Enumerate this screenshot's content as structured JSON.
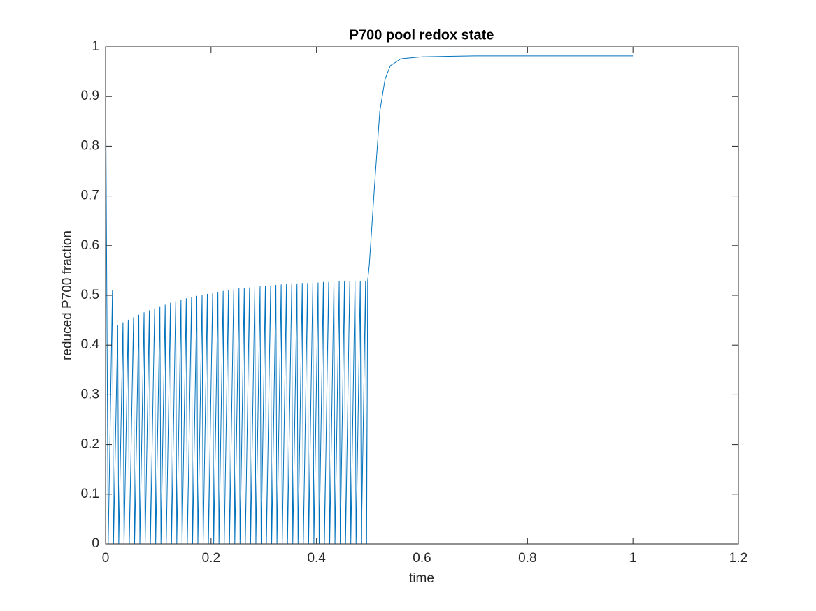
{
  "chart_data": {
    "type": "line",
    "title": "P700 pool redox state",
    "xlabel": "time",
    "ylabel": "reduced P700 fraction",
    "color": "#0072BD",
    "xlim": [
      0,
      1.2
    ],
    "xticks": [
      0,
      0.2,
      0.4,
      0.6,
      0.8,
      1,
      1.2
    ],
    "ylim": [
      0,
      1
    ],
    "yticks": [
      0,
      0.1,
      0.2,
      0.3,
      0.4,
      0.5,
      0.6,
      0.7,
      0.8,
      0.9,
      1
    ],
    "x": [
      0,
      0.005,
      0.013,
      0.015,
      0.023,
      0.025,
      0.033,
      0.035,
      0.043,
      0.045,
      0.053,
      0.055,
      0.063,
      0.065,
      0.073,
      0.075,
      0.083,
      0.085,
      0.093,
      0.095,
      0.103,
      0.105,
      0.113,
      0.115,
      0.123,
      0.125,
      0.133,
      0.135,
      0.143,
      0.145,
      0.153,
      0.155,
      0.163,
      0.165,
      0.173,
      0.175,
      0.183,
      0.185,
      0.193,
      0.195,
      0.203,
      0.205,
      0.213,
      0.215,
      0.223,
      0.225,
      0.233,
      0.235,
      0.243,
      0.245,
      0.253,
      0.255,
      0.263,
      0.265,
      0.273,
      0.275,
      0.283,
      0.285,
      0.293,
      0.295,
      0.303,
      0.305,
      0.313,
      0.315,
      0.323,
      0.325,
      0.333,
      0.335,
      0.343,
      0.345,
      0.353,
      0.355,
      0.363,
      0.365,
      0.373,
      0.375,
      0.383,
      0.385,
      0.393,
      0.395,
      0.403,
      0.405,
      0.413,
      0.415,
      0.423,
      0.425,
      0.433,
      0.435,
      0.443,
      0.445,
      0.453,
      0.455,
      0.463,
      0.465,
      0.473,
      0.475,
      0.483,
      0.485,
      0.493,
      0.495,
      0.497,
      0.5,
      0.51,
      0.52,
      0.53,
      0.54,
      0.56,
      0.6,
      0.7,
      1
    ],
    "values": [
      0.95,
      0,
      0.51,
      0,
      0.44,
      0,
      0.446,
      0,
      0.451,
      0,
      0.456,
      0,
      0.461,
      0,
      0.466,
      0,
      0.47,
      0,
      0.474,
      0,
      0.478,
      0,
      0.481,
      0,
      0.485,
      0,
      0.488,
      0,
      0.491,
      0,
      0.494,
      0,
      0.497,
      0,
      0.499,
      0,
      0.501,
      0,
      0.503,
      0,
      0.505,
      0,
      0.507,
      0,
      0.509,
      0,
      0.511,
      0,
      0.512,
      0,
      0.514,
      0,
      0.515,
      0,
      0.516,
      0,
      0.517,
      0,
      0.518,
      0,
      0.519,
      0,
      0.52,
      0,
      0.521,
      0,
      0.522,
      0,
      0.523,
      0,
      0.523,
      0,
      0.524,
      0,
      0.525,
      0,
      0.525,
      0,
      0.526,
      0,
      0.526,
      0,
      0.527,
      0,
      0.527,
      0,
      0.527,
      0,
      0.528,
      0,
      0.528,
      0,
      0.528,
      0,
      0.529,
      0,
      0.529,
      0,
      0.529,
      0,
      0.53,
      0.56,
      0.72,
      0.87,
      0.935,
      0.962,
      0.976,
      0.98,
      0.982,
      0.982
    ]
  }
}
